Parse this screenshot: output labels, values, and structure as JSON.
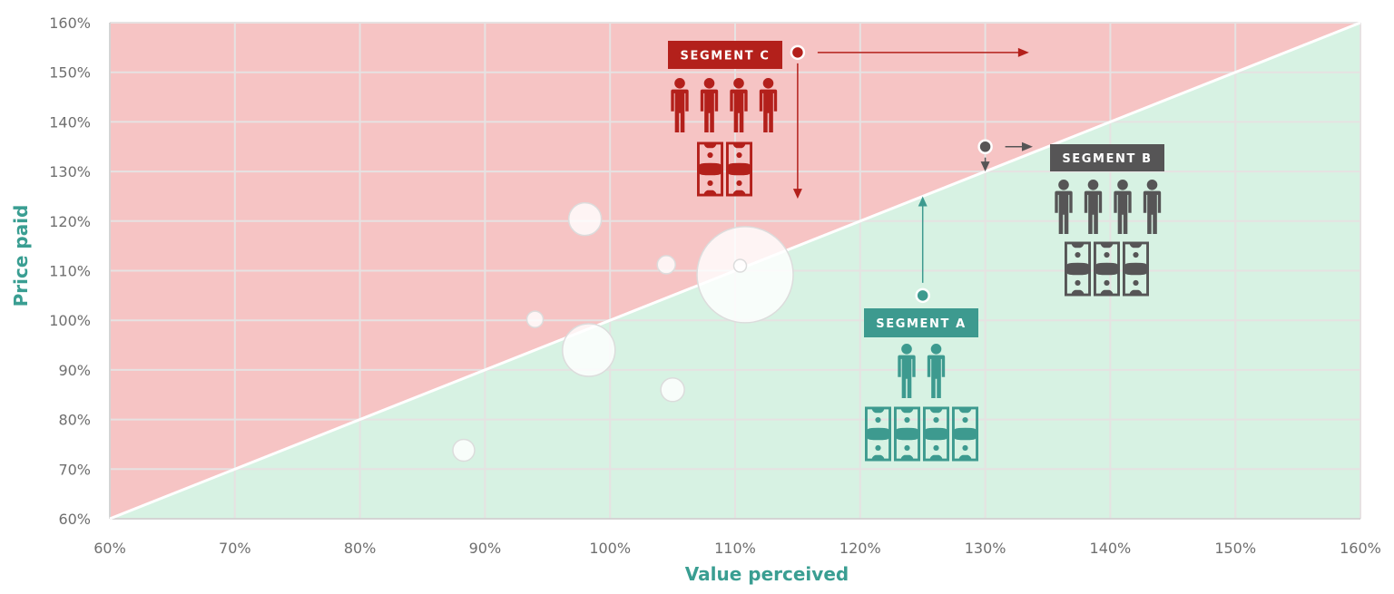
{
  "chart_data": {
    "type": "scatter",
    "title": "",
    "xlabel": "Value perceived",
    "ylabel": "Price paid",
    "xlim": [
      60,
      160
    ],
    "ylim": [
      60,
      160
    ],
    "grid": true,
    "x_ticks": [
      "60%",
      "70%",
      "80%",
      "90%",
      "100%",
      "110%",
      "120%",
      "130%",
      "140%",
      "150%",
      "160%"
    ],
    "y_ticks": [
      "60%",
      "70%",
      "80%",
      "90%",
      "100%",
      "110%",
      "120%",
      "130%",
      "140%",
      "150%",
      "160%"
    ],
    "regions": [
      {
        "name": "overpriced",
        "description": "price paid above value perceived",
        "color": "#f6c4c4"
      },
      {
        "name": "underpriced",
        "description": "price paid below value perceived",
        "color": "#d7f2e3"
      }
    ],
    "diagonal": {
      "from": [
        60,
        60
      ],
      "to": [
        160,
        160
      ],
      "color": "#ffffff"
    },
    "bubbles": [
      {
        "x": 88.3,
        "y": 73.8,
        "r": 12
      },
      {
        "x": 94.0,
        "y": 100.2,
        "r": 9
      },
      {
        "x": 98.0,
        "y": 120.4,
        "r": 18
      },
      {
        "x": 98.3,
        "y": 94.0,
        "r": 29
      },
      {
        "x": 104.5,
        "y": 111.2,
        "r": 10
      },
      {
        "x": 105.0,
        "y": 86.0,
        "r": 13
      },
      {
        "x": 110.8,
        "y": 109.2,
        "r": 53
      },
      {
        "x": 110.4,
        "y": 111.0,
        "r": 7
      }
    ],
    "segments": [
      {
        "label": "SEGMENT A",
        "color": "#3d9a8f",
        "point": {
          "x": 125,
          "y": 105
        },
        "customers_icons": 2,
        "money_icons": 4,
        "arrows": [
          {
            "direction": "up",
            "to": {
              "x": 125,
              "y": 125
            }
          }
        ]
      },
      {
        "label": "SEGMENT B",
        "color": "#565556",
        "point": {
          "x": 130,
          "y": 135
        },
        "customers_icons": 4,
        "money_icons": 3,
        "arrows": [
          {
            "direction": "right",
            "to": {
              "x": 133.8,
              "y": 135
            }
          },
          {
            "direction": "down",
            "to": {
              "x": 130,
              "y": 130
            }
          }
        ]
      },
      {
        "label": "SEGMENT C",
        "color": "#b3201b",
        "point": {
          "x": 115,
          "y": 154
        },
        "customers_icons": 4,
        "money_icons": 2,
        "arrows": [
          {
            "direction": "right",
            "to": {
              "x": 133.5,
              "y": 154
            }
          },
          {
            "direction": "down",
            "to": {
              "x": 115,
              "y": 124.5
            }
          }
        ]
      }
    ]
  }
}
